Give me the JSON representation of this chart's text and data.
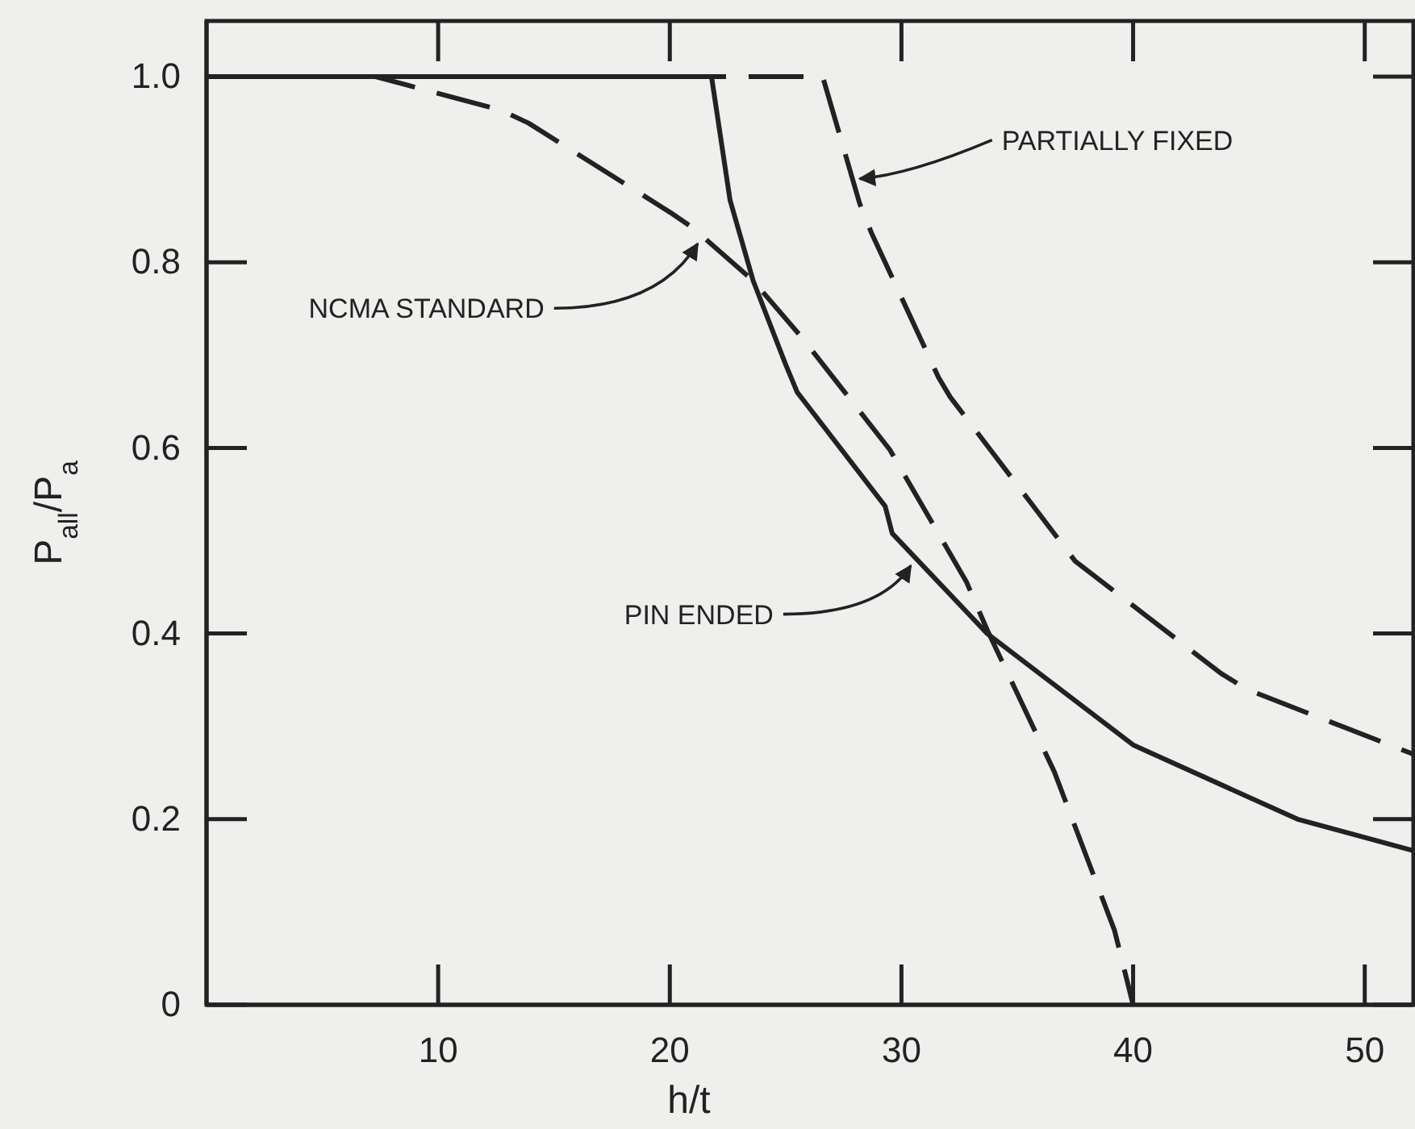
{
  "chart_data": {
    "type": "line",
    "xlabel": "h/t",
    "ylabel": "P$_{all}$/P$_{a}$",
    "xlim": [
      0,
      52.1
    ],
    "ylim": [
      0,
      1.06
    ],
    "xticks": [
      10,
      20,
      30,
      40,
      50
    ],
    "yticks": [
      0,
      0.2,
      0.4,
      0.6,
      {
        "value": 1,
        "label": "1.0"
      },
      0.8
    ],
    "grid": false,
    "marker": "none",
    "series": [
      {
        "color": "#222222",
        "line_style": "solid",
        "x": [
          0,
          21.8,
          22.6,
          23.6,
          25,
          25.5,
          29.3,
          29.6,
          33.7,
          40,
          47.1,
          52.1
        ],
        "values": [
          1,
          1,
          0.867,
          0.78,
          0.69,
          0.66,
          0.537,
          0.508,
          0.4,
          0.28,
          0.2,
          0.166
        ]
      },
      {
        "color": "#222222",
        "line_style": "dashed",
        "x": [
          0,
          7.3,
          12.7,
          13.9,
          20,
          21,
          23.6,
          25.7,
          29.5,
          32.8,
          33.7,
          36.6,
          39.2,
          40
        ],
        "values": [
          1,
          1,
          0.964,
          0.95,
          0.854,
          0.837,
          0.78,
          0.719,
          0.598,
          0.456,
          0.404,
          0.251,
          0.08,
          0
        ]
      },
      {
        "color": "#222222",
        "line_style": "dashed",
        "x": [
          0,
          26.6,
          28.2,
          28.7,
          31.6,
          32.1,
          37.5,
          43.8,
          44.9,
          52.1
        ],
        "values": [
          1,
          1,
          0.863,
          0.832,
          0.676,
          0.655,
          0.478,
          0.357,
          0.34,
          0.27
        ]
      }
    ],
    "annotations": [
      {
        "text": "NCMA STANDARD",
        "x": 21.2,
        "y": 0.82
      },
      {
        "text": "PIN ENDED",
        "x": 30.4,
        "y": 0.473
      },
      {
        "text": "PARTIALLY FIXED",
        "x": 28.2,
        "y": 0.89
      }
    ]
  }
}
